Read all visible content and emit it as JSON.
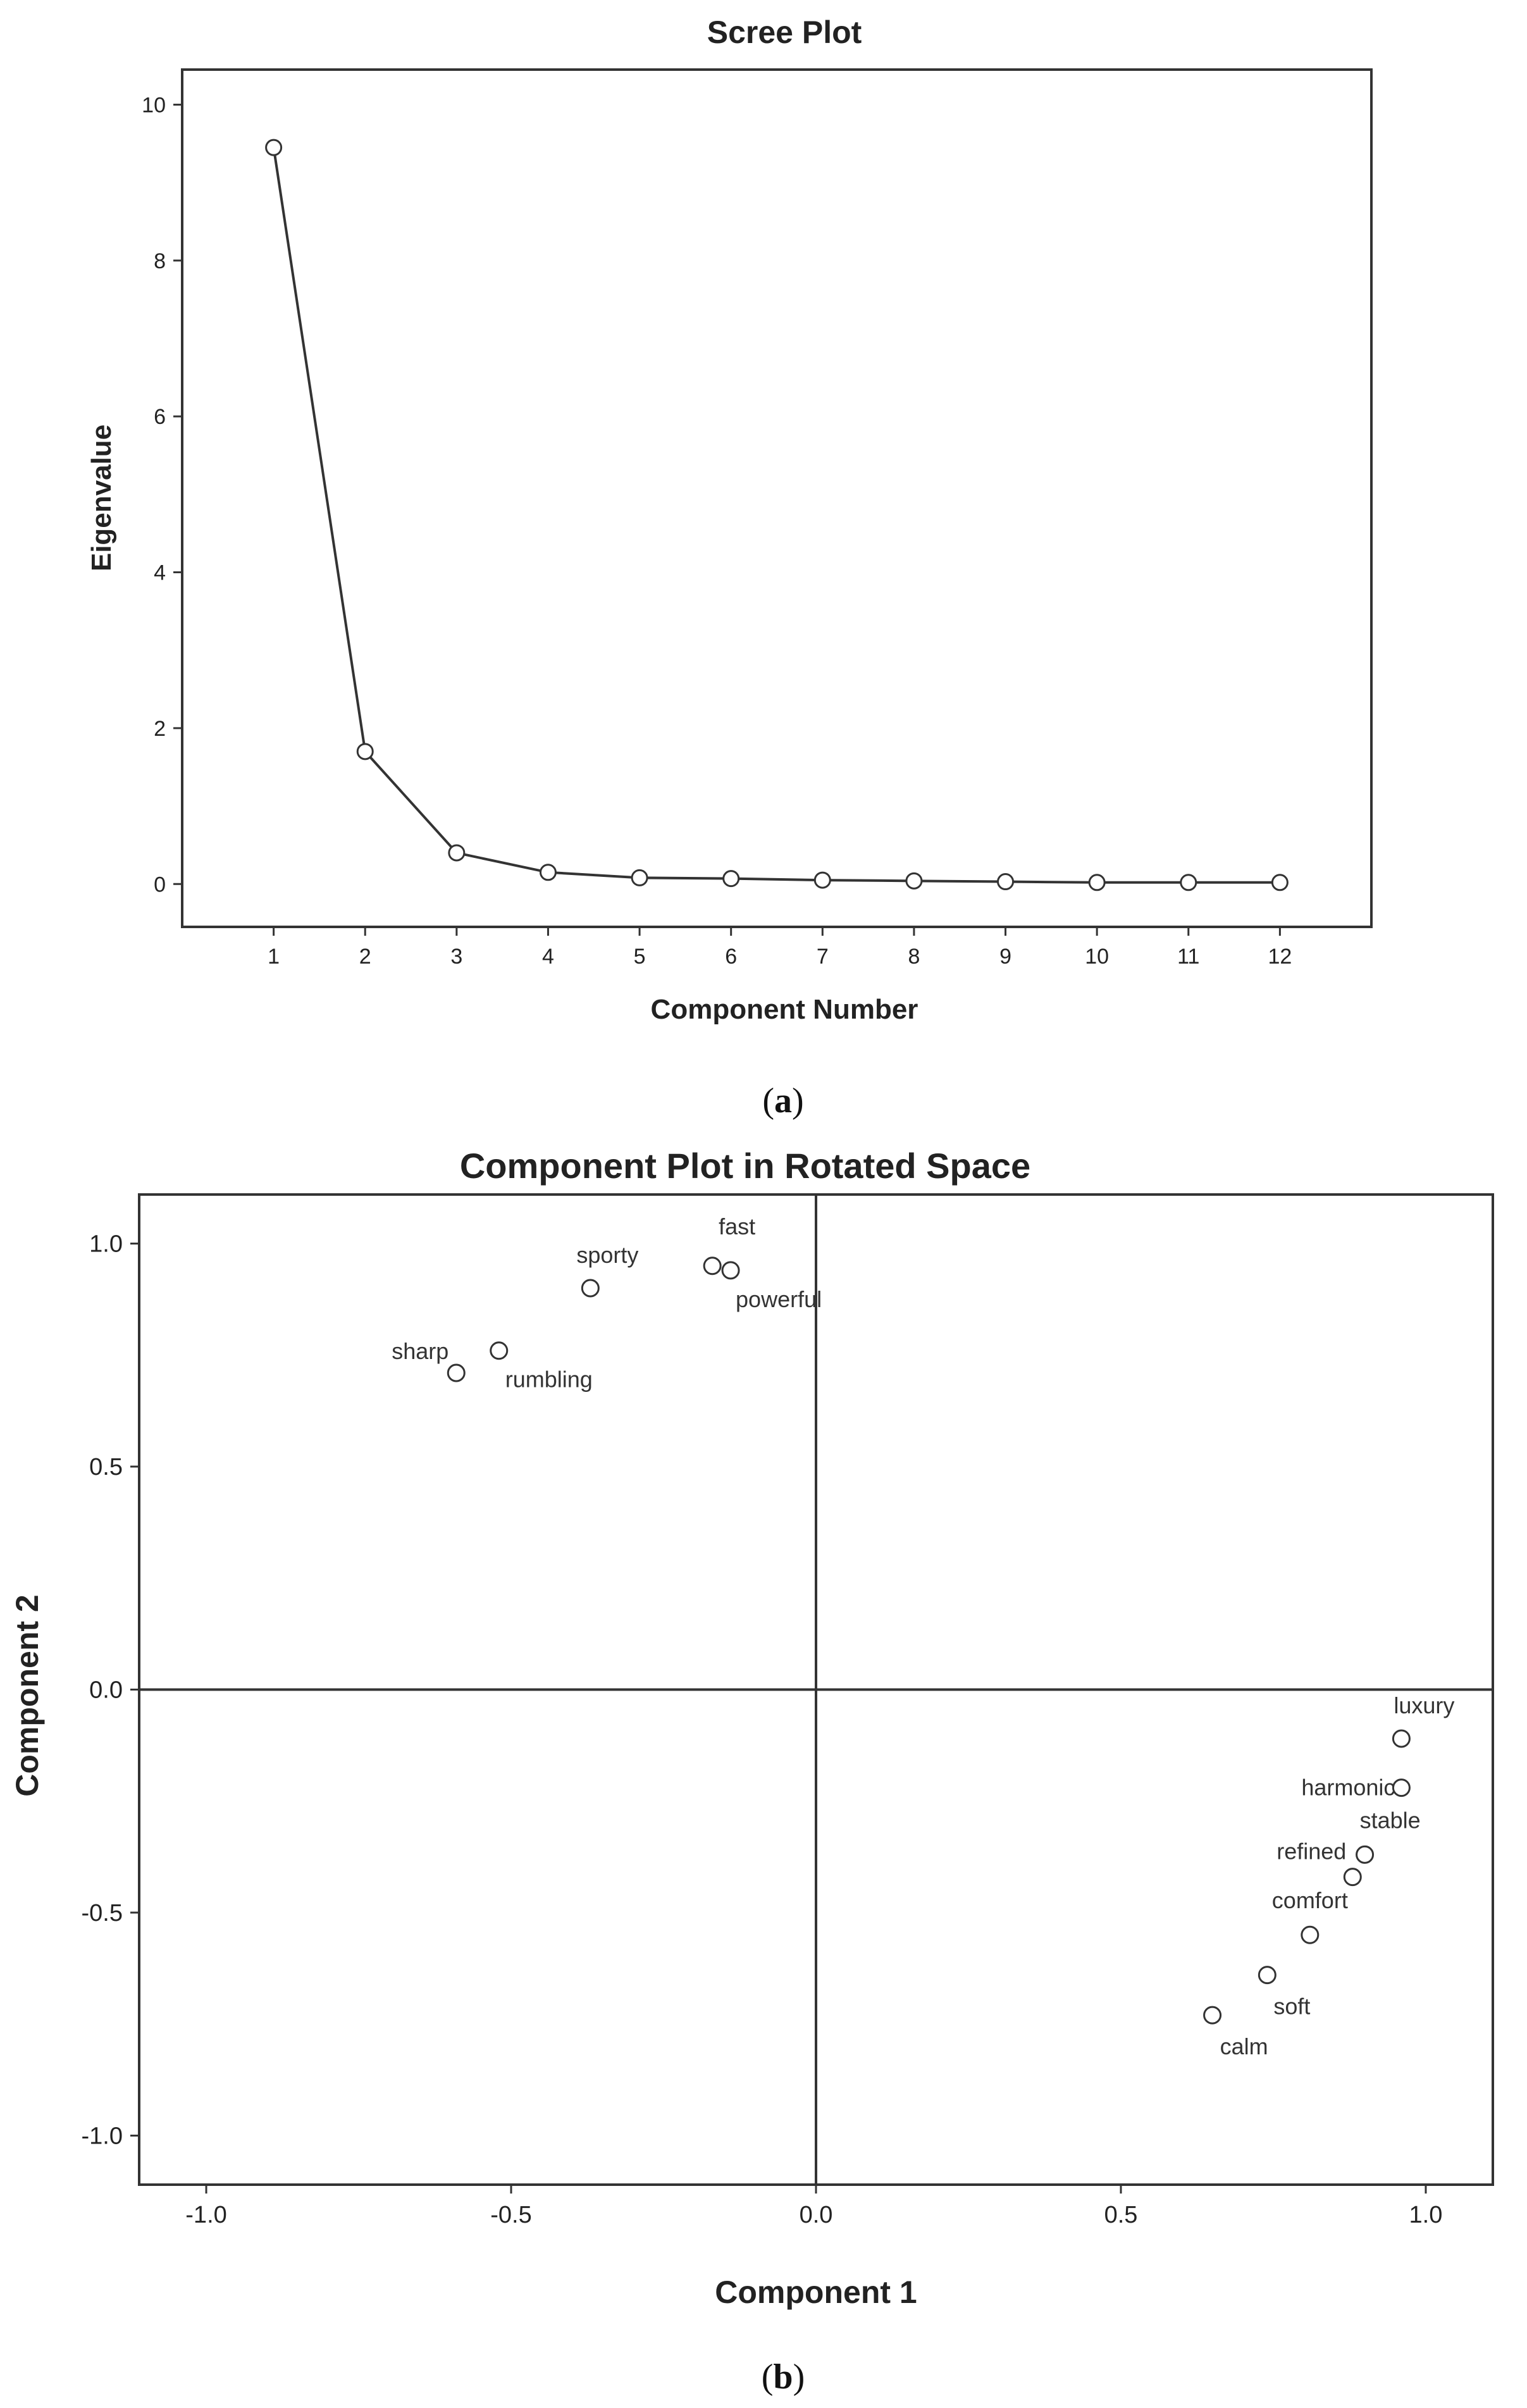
{
  "chart_data": [
    {
      "type": "line",
      "title": "Scree Plot",
      "xlabel": "Component Number",
      "ylabel": "Eigenvalue",
      "x": [
        1,
        2,
        3,
        4,
        5,
        6,
        7,
        8,
        9,
        10,
        11,
        12
      ],
      "series": [
        {
          "values": [
            9.45,
            1.7,
            0.4,
            0.15,
            0.08,
            0.07,
            0.05,
            0.04,
            0.03,
            0.02,
            0.02,
            0.02
          ]
        }
      ],
      "xticks": [
        "1",
        "2",
        "3",
        "4",
        "5",
        "6",
        "7",
        "8",
        "9",
        "10",
        "11",
        "12"
      ],
      "yticks": [
        "0",
        "2",
        "4",
        "6",
        "8",
        "10"
      ],
      "xlim": [
        0,
        13
      ],
      "ylim": [
        -0.55,
        10.45
      ],
      "grid": false,
      "caption": "a"
    },
    {
      "type": "scatter",
      "title": "Component Plot in Rotated Space",
      "xlabel": "Component 1",
      "ylabel": "Component 2",
      "points": [
        {
          "label": "fast",
          "x": -0.17,
          "y": 0.95
        },
        {
          "label": "powerful",
          "x": -0.14,
          "y": 0.94
        },
        {
          "label": "sporty",
          "x": -0.37,
          "y": 0.9
        },
        {
          "label": "rumbling",
          "x": -0.52,
          "y": 0.76
        },
        {
          "label": "sharp",
          "x": -0.59,
          "y": 0.71
        },
        {
          "label": "luxury",
          "x": 0.96,
          "y": -0.11
        },
        {
          "label": "harmonic",
          "x": 0.96,
          "y": -0.22
        },
        {
          "label": "stable",
          "x": 0.9,
          "y": -0.37
        },
        {
          "label": "refined",
          "x": 0.88,
          "y": -0.42
        },
        {
          "label": "comfort",
          "x": 0.81,
          "y": -0.55
        },
        {
          "label": "soft",
          "x": 0.74,
          "y": -0.64
        },
        {
          "label": "calm",
          "x": 0.65,
          "y": -0.73
        }
      ],
      "xticks": [
        "-1.0",
        "-0.5",
        "0.0",
        "0.5",
        "1.0"
      ],
      "yticks": [
        "1.0",
        "0.5",
        "0.0",
        "-0.5",
        "-1.0"
      ],
      "xlim": [
        -1.11,
        1.11
      ],
      "ylim": [
        -1.11,
        1.11
      ],
      "grid": false,
      "caption": "b"
    }
  ]
}
